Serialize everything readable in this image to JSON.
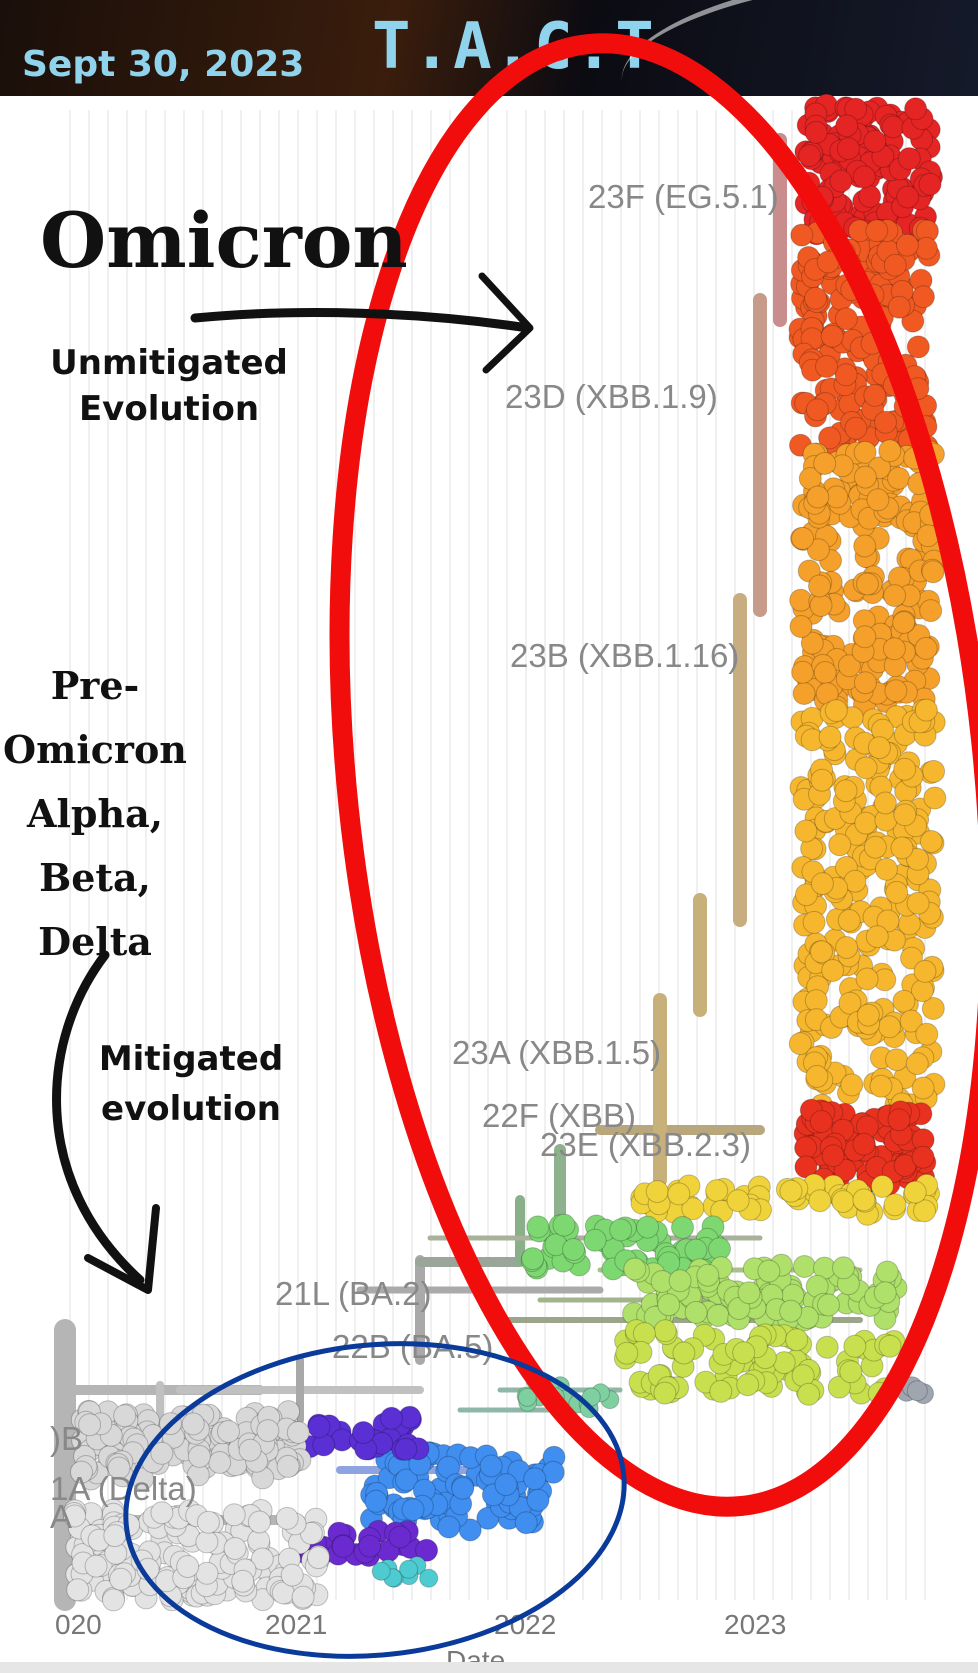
{
  "header": {
    "date": "Sept 30, 2023",
    "title": "T.A.C.T"
  },
  "annotations": {
    "omicron": "Omicron",
    "unmitigated": [
      "Unmitigated",
      "Evolution"
    ],
    "pre_omicron": [
      "Pre-",
      "Omicron",
      "Alpha,",
      "Beta,",
      "Delta"
    ],
    "mitigated": [
      "Mitigated",
      "evolution"
    ]
  },
  "tree": {
    "x_ticks": [
      "020",
      "2021",
      "2022",
      "2023"
    ],
    "x_axis_label": "Date",
    "clade_labels": [
      "23F (EG.5.1)",
      "23D (XBB.1.9)",
      "23B (XBB.1.16)",
      "23A (XBB.1.5)",
      "22F (XBB)",
      "23E (XBB.2.3)",
      "21L (BA.2)",
      "22B (BA.5)",
      ")B",
      "1A (Delta)",
      "A"
    ]
  },
  "colors": {
    "banner_text": "#8fd3ec",
    "red_ellipse": "#f20d0d",
    "blue_ellipse": "#0a3a9a",
    "arrow": "#111111"
  }
}
